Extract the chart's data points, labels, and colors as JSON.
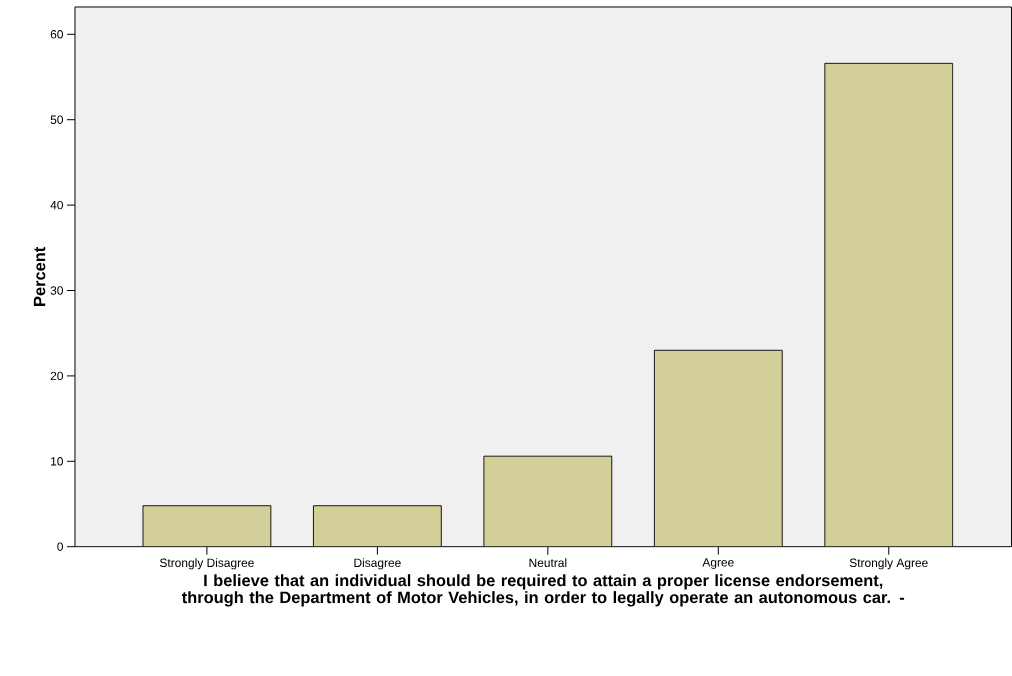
{
  "chart_data": {
    "type": "bar",
    "xlabel": "I believe that an individual should be required to attain a proper license endorsement, through the Department of Motor Vehicles, in order to legally operate an autonomous car. -",
    "ylabel": "Percent",
    "categories": [
      "Strongly Disagree",
      "Disagree",
      "Neutral",
      "Agree",
      "Strongly Agree"
    ],
    "values": [
      4.8,
      4.8,
      10.6,
      23.0,
      56.6
    ],
    "color": "#d3cf99",
    "ylim": [
      0,
      63.2
    ],
    "yticks": [
      0,
      10,
      20,
      30,
      40,
      50,
      60
    ]
  }
}
